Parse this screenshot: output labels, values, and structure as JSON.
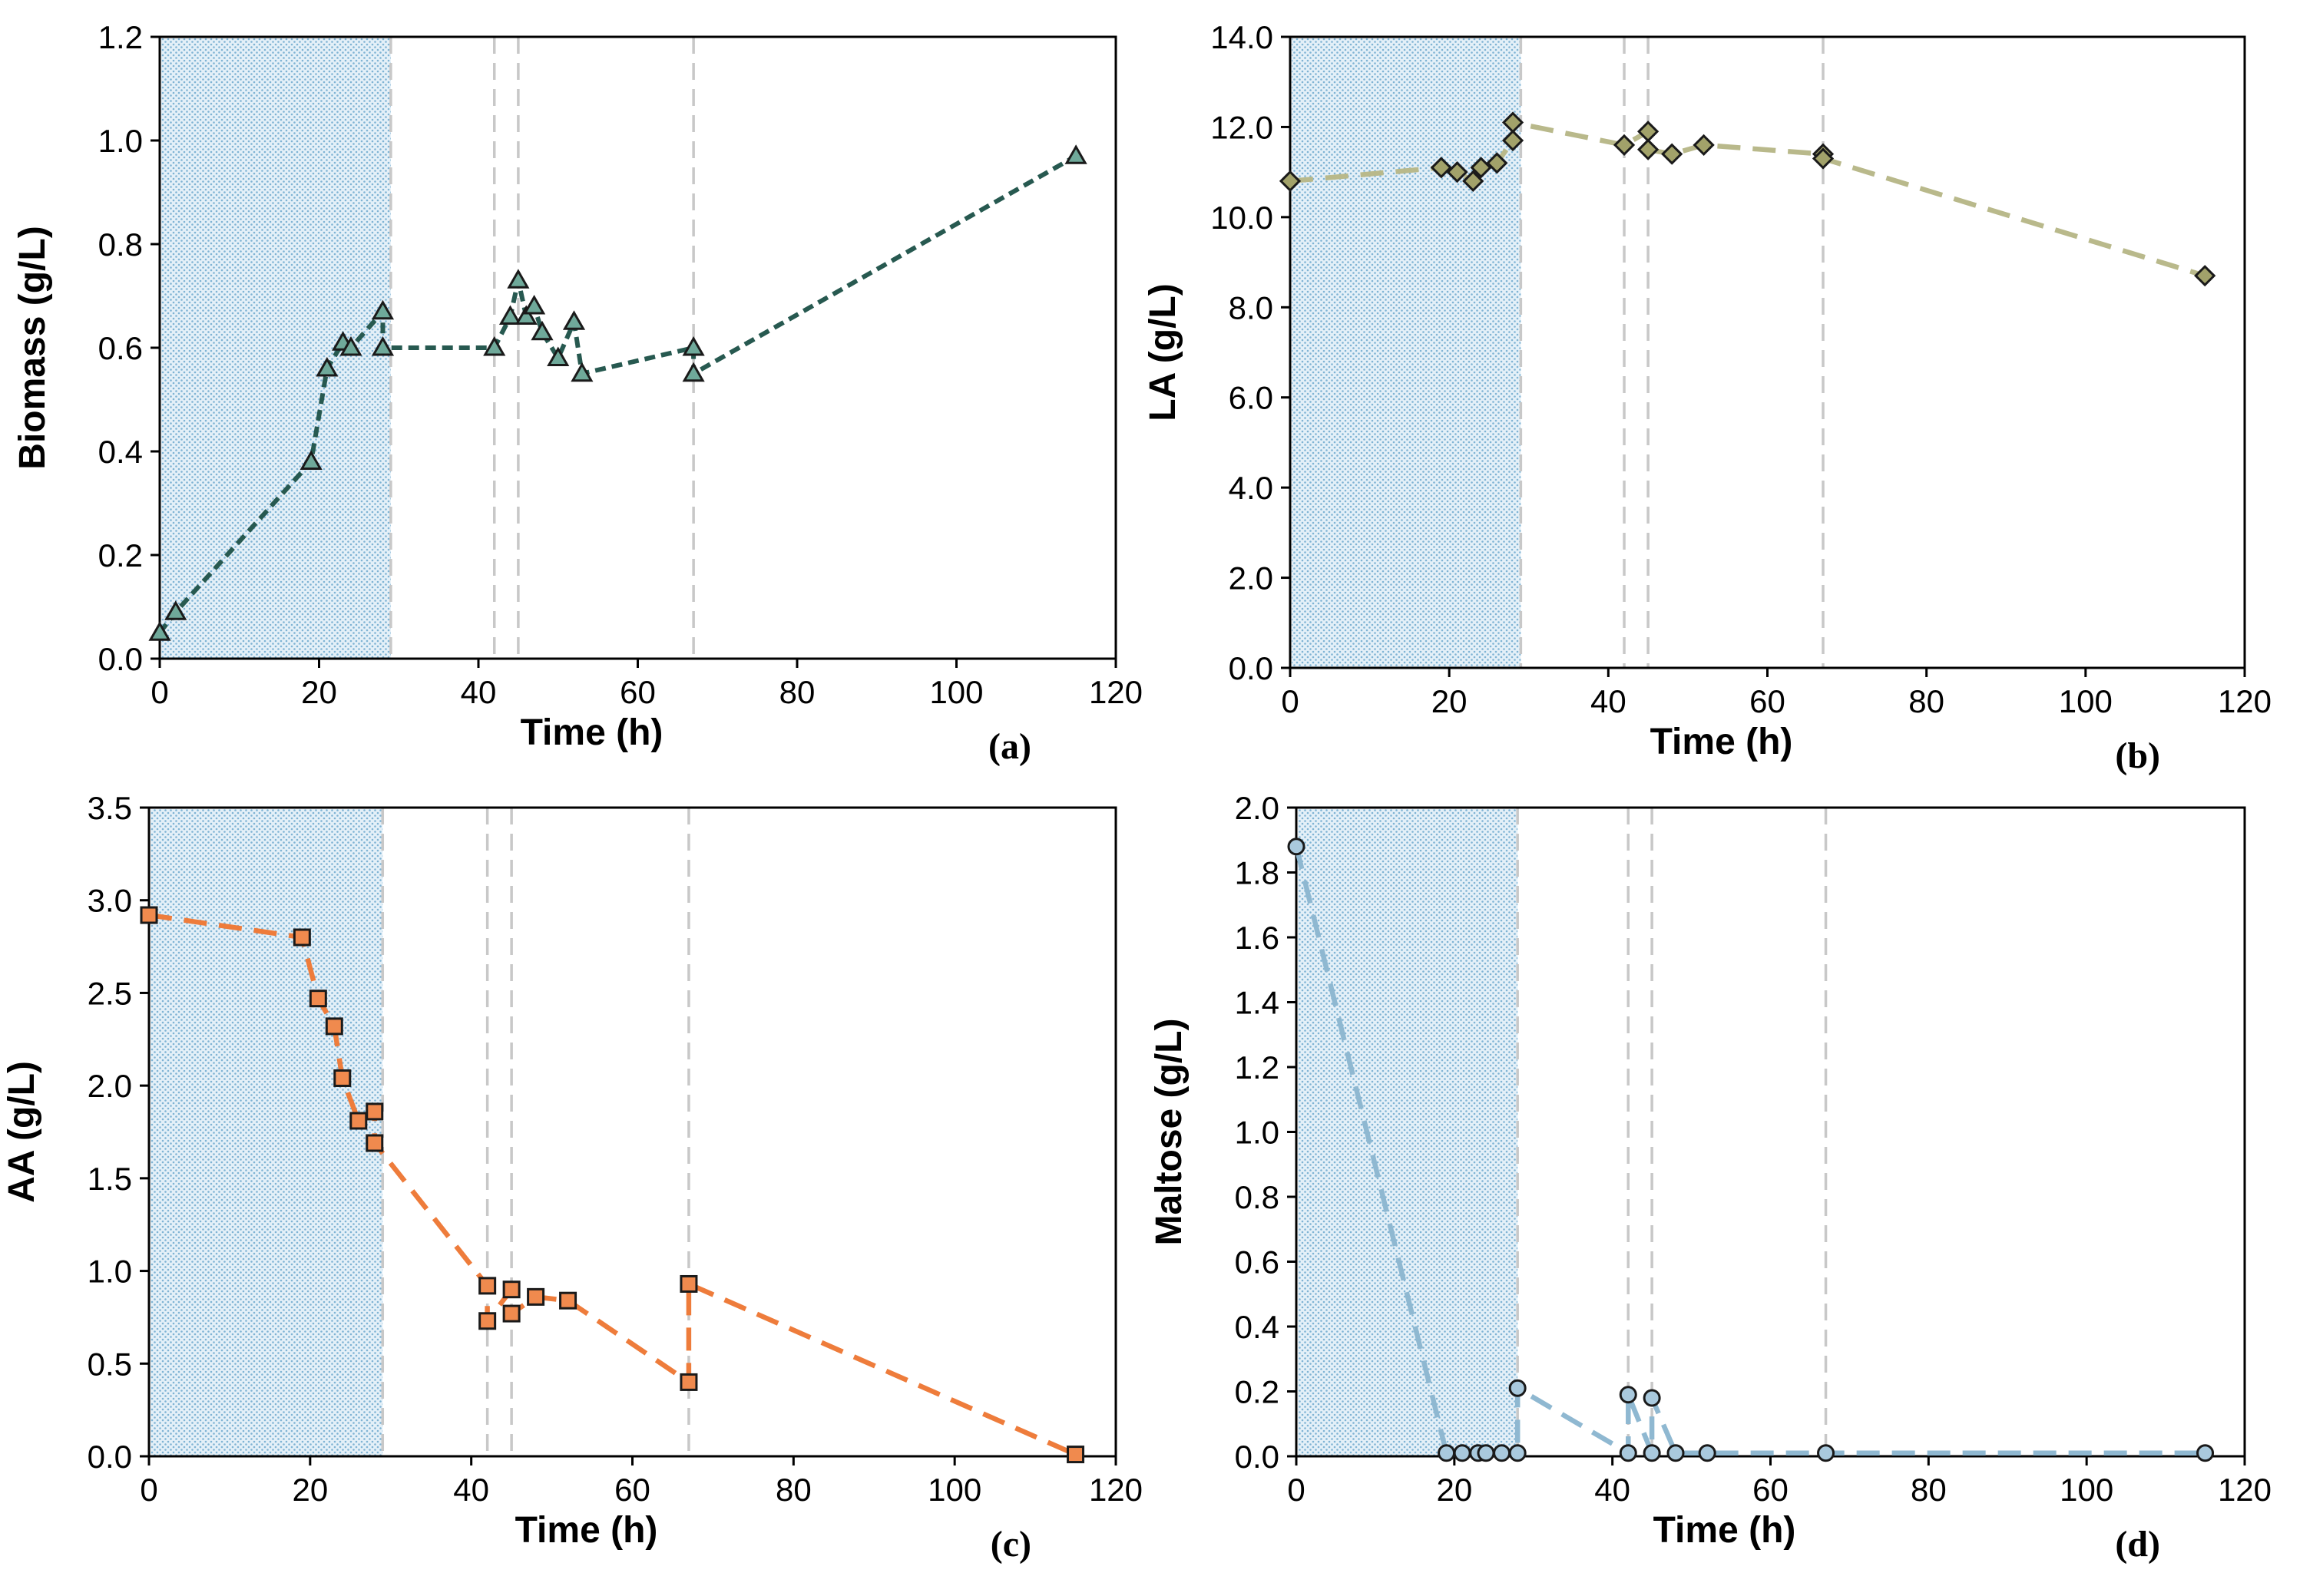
{
  "chart_data": [
    {
      "panel": "(a)",
      "type": "line",
      "xlabel": "Time (h)",
      "ylabel": "Biomass (g/L)",
      "xlim": [
        0,
        120
      ],
      "ylim": [
        0,
        1.2
      ],
      "xticks": [
        0,
        20,
        40,
        60,
        80,
        100,
        120
      ],
      "yticks": [
        "0.0",
        "0.2",
        "0.4",
        "0.6",
        "0.8",
        "1.0",
        "1.2"
      ],
      "shaded_region": [
        0,
        29
      ],
      "vlines": [
        29,
        42,
        45,
        67
      ],
      "marker": "triangle",
      "line_color": "#275950",
      "marker_fill": "#6fa99a",
      "points": [
        [
          0,
          0.05
        ],
        [
          2,
          0.09
        ],
        [
          19,
          0.38
        ],
        [
          21,
          0.56
        ],
        [
          23,
          0.61
        ],
        [
          24,
          0.6
        ],
        [
          28,
          0.67
        ],
        [
          28,
          0.6
        ],
        [
          42,
          0.6
        ],
        [
          44,
          0.66
        ],
        [
          45,
          0.73
        ],
        [
          46,
          0.66
        ],
        [
          47,
          0.68
        ],
        [
          48,
          0.63
        ],
        [
          50,
          0.58
        ],
        [
          52,
          0.65
        ],
        [
          53,
          0.55
        ],
        [
          67,
          0.6
        ],
        [
          67,
          0.55
        ],
        [
          115,
          0.97
        ]
      ]
    },
    {
      "panel": "(b)",
      "type": "line",
      "xlabel": "Time (h)",
      "ylabel": "LA (g/L)",
      "xlim": [
        0,
        120
      ],
      "ylim": [
        0,
        14
      ],
      "xticks": [
        0,
        20,
        40,
        60,
        80,
        100,
        120
      ],
      "yticks": [
        "0.0",
        "2.0",
        "4.0",
        "6.0",
        "8.0",
        "10.0",
        "12.0",
        "14.0"
      ],
      "shaded_region": [
        0,
        29
      ],
      "vlines": [
        29,
        42,
        45,
        67
      ],
      "marker": "diamond",
      "line_color": "#b9b98b",
      "marker_fill": "#a2a26a",
      "points": [
        [
          0,
          10.8
        ],
        [
          19,
          11.1
        ],
        [
          21,
          11.0
        ],
        [
          23,
          10.8
        ],
        [
          24,
          11.1
        ],
        [
          26,
          11.2
        ],
        [
          28,
          11.7
        ],
        [
          28,
          12.1
        ],
        [
          42,
          11.6
        ],
        [
          45,
          11.9
        ],
        [
          45,
          11.5
        ],
        [
          48,
          11.4
        ],
        [
          52,
          11.6
        ],
        [
          67,
          11.4
        ],
        [
          67,
          11.3
        ],
        [
          115,
          8.7
        ]
      ]
    },
    {
      "panel": "(c)",
      "type": "line",
      "xlabel": "Time (h)",
      "ylabel": "AA (g/L)",
      "xlim": [
        0,
        120
      ],
      "ylim": [
        0,
        3.5
      ],
      "xticks": [
        0,
        20,
        40,
        60,
        80,
        100,
        120
      ],
      "yticks": [
        "0.0",
        "0.5",
        "1.0",
        "1.5",
        "2.0",
        "2.5",
        "3.0",
        "3.5"
      ],
      "shaded_region": [
        0,
        29
      ],
      "vlines": [
        29,
        42,
        45,
        67
      ],
      "marker": "square",
      "line_color": "#ee7c3b",
      "marker_fill": "#f08a4e",
      "points": [
        [
          0,
          2.92
        ],
        [
          19,
          2.8
        ],
        [
          21,
          2.47
        ],
        [
          23,
          2.32
        ],
        [
          24,
          2.04
        ],
        [
          26,
          1.81
        ],
        [
          28,
          1.86
        ],
        [
          28,
          1.69
        ],
        [
          42,
          0.92
        ],
        [
          42,
          0.73
        ],
        [
          45,
          0.9
        ],
        [
          45,
          0.77
        ],
        [
          48,
          0.86
        ],
        [
          52,
          0.84
        ],
        [
          67,
          0.4
        ],
        [
          67,
          0.93
        ],
        [
          115,
          0.01
        ]
      ]
    },
    {
      "panel": "(d)",
      "type": "line",
      "xlabel": "Time (h)",
      "ylabel": "Maltose (g/L)",
      "xlim": [
        0,
        120
      ],
      "ylim": [
        0,
        2.0
      ],
      "xticks": [
        0,
        20,
        40,
        60,
        80,
        100,
        120
      ],
      "yticks": [
        "0.0",
        "0.2",
        "0.4",
        "0.6",
        "0.8",
        "1.0",
        "1.2",
        "1.4",
        "1.6",
        "1.8",
        "2.0"
      ],
      "shaded_region": [
        0,
        28
      ],
      "vlines": [
        28,
        42,
        45,
        67
      ],
      "marker": "circle",
      "line_color": "#8fb8d1",
      "marker_fill": "#a9c9dd",
      "points": [
        [
          0,
          1.88
        ],
        [
          19,
          0.01
        ],
        [
          21,
          0.01
        ],
        [
          23,
          0.01
        ],
        [
          24,
          0.01
        ],
        [
          26,
          0.01
        ],
        [
          28,
          0.01
        ],
        [
          28,
          0.21
        ],
        [
          42,
          0.01
        ],
        [
          42,
          0.19
        ],
        [
          45,
          0.01
        ],
        [
          45,
          0.18
        ],
        [
          48,
          0.01
        ],
        [
          52,
          0.01
        ],
        [
          67,
          0.01
        ],
        [
          115,
          0.01
        ]
      ]
    }
  ],
  "colors": {
    "shade_dot": "#7fb3d4",
    "shade_bg": "#e4f0f8",
    "vline": "#c8c8c8",
    "axis": "#000000"
  }
}
